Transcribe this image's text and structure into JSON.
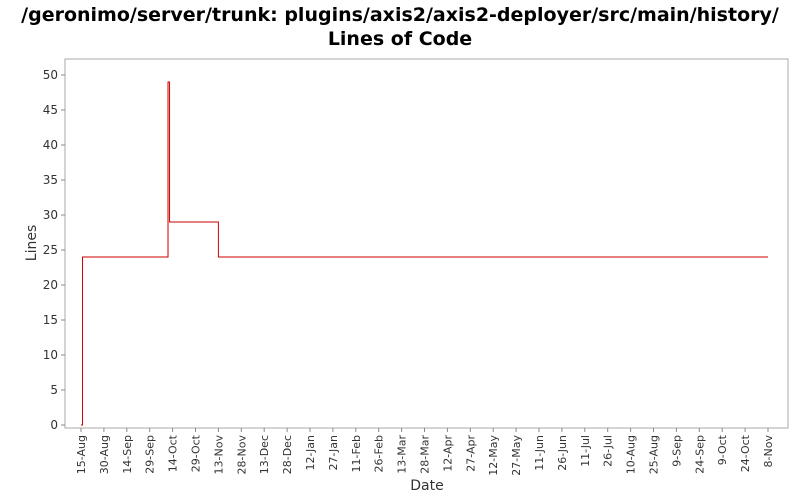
{
  "chart_data": {
    "type": "line",
    "title": "/geronimo/server/trunk: plugins/axis2/axis2-deployer/src/main/history/",
    "subtitle": "Lines of Code",
    "xlabel": "Date",
    "ylabel": "Lines",
    "ylim": [
      0,
      51
    ],
    "y_ticks": [
      0,
      5,
      10,
      15,
      20,
      25,
      30,
      35,
      40,
      45,
      50
    ],
    "x_tick_labels": [
      "15-Aug",
      "30-Aug",
      "14-Sep",
      "29-Sep",
      "14-Oct",
      "29-Oct",
      "13-Nov",
      "28-Nov",
      "13-Dec",
      "28-Dec",
      "12-Jan",
      "27-Jan",
      "11-Feb",
      "26-Feb",
      "13-Mar",
      "28-Mar",
      "12-Apr",
      "27-Apr",
      "12-May",
      "27-May",
      "11-Jun",
      "26-Jun",
      "11-Jul",
      "26-Jul",
      "10-Aug",
      "25-Aug",
      "9-Sep",
      "24-Sep",
      "9-Oct",
      "24-Oct",
      "8-Nov"
    ],
    "grid": false,
    "line_style": "step",
    "series_color": "#cc0000",
    "series": [
      {
        "x": [
          "15-Aug",
          "16-Aug",
          "10-Oct",
          "11-Oct",
          "12-Oct",
          "12-Oct",
          "13-Nov",
          "8-Nov"
        ],
        "values": [
          0,
          24,
          24,
          49,
          49,
          29,
          24,
          24
        ]
      }
    ]
  }
}
